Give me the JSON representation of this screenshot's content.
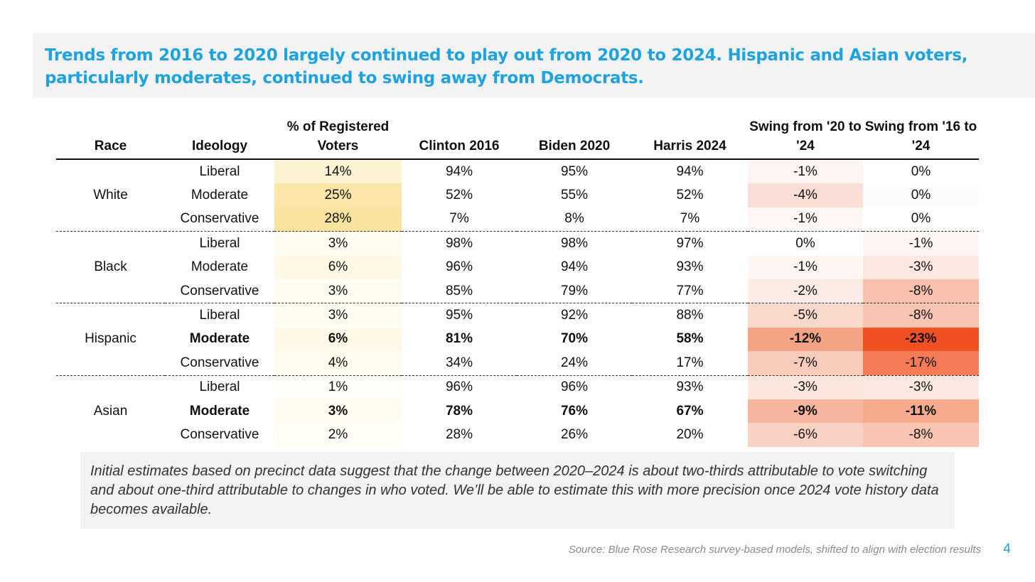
{
  "title": "Trends from 2016 to 2020 largely continued to play out from 2020 to 2024. Hispanic and Asian voters, particularly moderates, continued to swing away from Democrats.",
  "table": {
    "headers": [
      "Race",
      "Ideology",
      "% of Registered Voters",
      "Clinton 2016",
      "Biden 2020",
      "Harris 2024",
      "Swing from '20 to '24",
      "Swing from '16 to '24"
    ],
    "groups": [
      {
        "race": "White",
        "rows": [
          {
            "ideology": "Liberal",
            "reg": "14%",
            "clinton": "94%",
            "biden": "95%",
            "harris": "94%",
            "swing2024": "-1%",
            "swing1624": "0%",
            "bold": false,
            "reg_color": "#fdf3d2",
            "s1_color": "#fef4f1",
            "s2_color": "#ffffff"
          },
          {
            "ideology": "Moderate",
            "reg": "25%",
            "clinton": "52%",
            "biden": "55%",
            "harris": "52%",
            "swing2024": "-4%",
            "swing1624": "0%",
            "bold": false,
            "reg_color": "#fbe6a7",
            "s1_color": "#fbdfd6",
            "s2_color": "#fcfcfc"
          },
          {
            "ideology": "Conservative",
            "reg": "28%",
            "clinton": "7%",
            "biden": "8%",
            "harris": "7%",
            "swing2024": "-1%",
            "swing1624": "0%",
            "bold": false,
            "reg_color": "#fae39e",
            "s1_color": "#fef7f5",
            "s2_color": "#ffffff"
          }
        ]
      },
      {
        "race": "Black",
        "rows": [
          {
            "ideology": "Liberal",
            "reg": "3%",
            "clinton": "98%",
            "biden": "98%",
            "harris": "97%",
            "swing2024": "0%",
            "swing1624": "-1%",
            "bold": false,
            "reg_color": "#fffcf2",
            "s1_color": "#ffffff",
            "s2_color": "#fdf6f3"
          },
          {
            "ideology": "Moderate",
            "reg": "6%",
            "clinton": "96%",
            "biden": "94%",
            "harris": "93%",
            "swing2024": "-1%",
            "swing1624": "-3%",
            "bold": false,
            "reg_color": "#fef9e6",
            "s1_color": "#fef6f3",
            "s2_color": "#fce8e1"
          },
          {
            "ideology": "Conservative",
            "reg": "3%",
            "clinton": "85%",
            "biden": "79%",
            "harris": "77%",
            "swing2024": "-2%",
            "swing1624": "-8%",
            "bold": false,
            "reg_color": "#fffcf2",
            "s1_color": "#fdece6",
            "s2_color": "#f8c0ad"
          }
        ]
      },
      {
        "race": "Hispanic",
        "rows": [
          {
            "ideology": "Liberal",
            "reg": "3%",
            "clinton": "95%",
            "biden": "92%",
            "harris": "88%",
            "swing2024": "-5%",
            "swing1624": "-8%",
            "bold": false,
            "reg_color": "#fffcf2",
            "s1_color": "#fbd9cd",
            "s2_color": "#f9c4b2"
          },
          {
            "ideology": "Moderate",
            "reg": "6%",
            "clinton": "81%",
            "biden": "70%",
            "harris": "58%",
            "swing2024": "-12%",
            "swing1624": "-23%",
            "bold": true,
            "reg_color": "#fef9e6",
            "s1_color": "#f4a385",
            "s2_color": "#f05022"
          },
          {
            "ideology": "Conservative",
            "reg": "4%",
            "clinton": "34%",
            "biden": "24%",
            "harris": "17%",
            "swing2024": "-7%",
            "swing1624": "-17%",
            "bold": false,
            "reg_color": "#fffbee",
            "s1_color": "#f9cbbb",
            "s2_color": "#f47b56"
          }
        ]
      },
      {
        "race": "Asian",
        "rows": [
          {
            "ideology": "Liberal",
            "reg": "1%",
            "clinton": "96%",
            "biden": "96%",
            "harris": "93%",
            "swing2024": "-3%",
            "swing1624": "-3%",
            "bold": false,
            "reg_color": "#fffef9",
            "s1_color": "#fce6de",
            "s2_color": "#fce8e1"
          },
          {
            "ideology": "Moderate",
            "reg": "3%",
            "clinton": "78%",
            "biden": "76%",
            "harris": "67%",
            "swing2024": "-9%",
            "swing1624": "-11%",
            "bold": true,
            "reg_color": "#fffcf2",
            "s1_color": "#f7b59e",
            "s2_color": "#f6ab8f"
          },
          {
            "ideology": "Conservative",
            "reg": "2%",
            "clinton": "28%",
            "biden": "26%",
            "harris": "20%",
            "swing2024": "-6%",
            "swing1624": "-8%",
            "bold": false,
            "reg_color": "#fffdf6",
            "s1_color": "#fad2c4",
            "s2_color": "#f9c4b2"
          }
        ]
      }
    ]
  },
  "note": "Initial estimates based on precinct data suggest that the change between 2020–2024 is about two-thirds attributable to vote switching and about one-third attributable to changes in who voted. We’ll be able to estimate this with more precision once 2024 vote history data becomes available.",
  "source": "Source: Blue Rose Research survey-based models, shifted to align with election results",
  "page_number": "4",
  "colors": {
    "accent": "#1fa3e0",
    "band": "#f3f3f3"
  }
}
